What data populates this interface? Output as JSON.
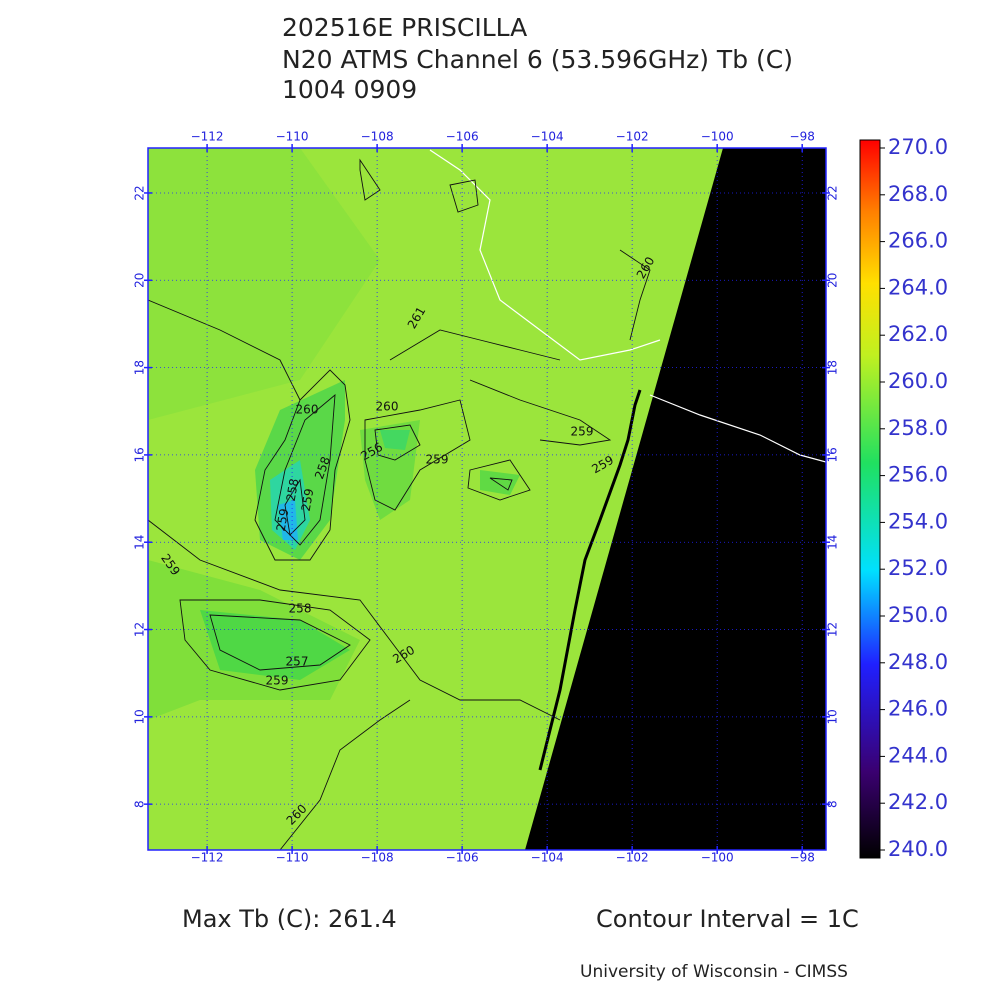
{
  "header": {
    "lines": [
      "202516E PRISCILLA",
      "N20 ATMS Channel 6 (53.596GHz) Tb (C)",
      "1004 0909"
    ]
  },
  "map": {
    "lon_range": [
      -113.39,
      -97.44
    ],
    "lat_range": [
      6.95,
      23.03
    ],
    "lon_ticks": [
      {
        "value": -112,
        "label": "−112"
      },
      {
        "value": -110,
        "label": "−110"
      },
      {
        "value": -108,
        "label": "−108"
      },
      {
        "value": -106,
        "label": "−106"
      },
      {
        "value": -104,
        "label": "−104"
      },
      {
        "value": -102,
        "label": "−102"
      },
      {
        "value": -100,
        "label": "−100"
      },
      {
        "value": -98,
        "label": "−98"
      }
    ],
    "lat_ticks": [
      8,
      10,
      12,
      14,
      16,
      18,
      20,
      22
    ],
    "contour_labels": [
      "261",
      "260",
      "259",
      "260",
      "259",
      "258",
      "258",
      "256",
      "259",
      "259",
      "260",
      "259",
      "258",
      "257",
      "259",
      "260",
      "260",
      "259"
    ]
  },
  "colorbar": {
    "range": [
      240,
      270
    ],
    "ticks": [
      {
        "value": 270,
        "label": "270.0"
      },
      {
        "value": 268,
        "label": "268.0"
      },
      {
        "value": 266,
        "label": "266.0"
      },
      {
        "value": 264,
        "label": "264.0"
      },
      {
        "value": 262,
        "label": "262.0"
      },
      {
        "value": 260,
        "label": "260.0"
      },
      {
        "value": 258,
        "label": "258.0"
      },
      {
        "value": 256,
        "label": "256.0"
      },
      {
        "value": 254,
        "label": "254.0"
      },
      {
        "value": 252,
        "label": "252.0"
      },
      {
        "value": 250,
        "label": "250.0"
      },
      {
        "value": 248,
        "label": "248.0"
      },
      {
        "value": 246,
        "label": "246.0"
      },
      {
        "value": 244,
        "label": "244.0"
      },
      {
        "value": 242,
        "label": "242.0"
      },
      {
        "value": 240,
        "label": "240.0"
      }
    ]
  },
  "footer": {
    "max_tb": "Max Tb (C): 261.4",
    "interval": "Contour Interval = 1C",
    "credit": "University of Wisconsin - CIMSS"
  }
}
